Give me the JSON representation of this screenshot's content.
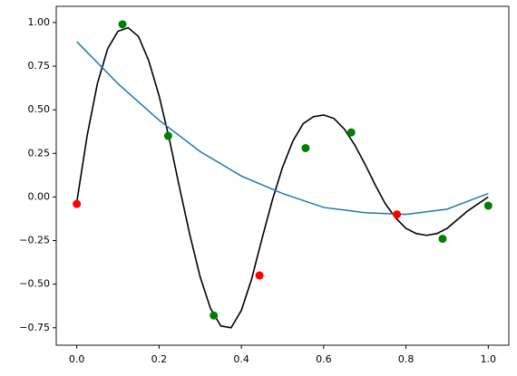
{
  "chart_data": {
    "type": "line",
    "xlim": [
      -0.05,
      1.05
    ],
    "ylim": [
      -0.85,
      1.093
    ],
    "xticks": [
      {
        "value": 0,
        "label": "0.0"
      },
      {
        "value": 0.2,
        "label": "0.2"
      },
      {
        "value": 0.4,
        "label": "0.4"
      },
      {
        "value": 0.6,
        "label": "0.6"
      },
      {
        "value": 0.8,
        "label": "0.8"
      },
      {
        "value": 1,
        "label": "1.0"
      }
    ],
    "yticks": [
      {
        "value": -0.75,
        "label": "−0.75"
      },
      {
        "value": -0.5,
        "label": "−0.50"
      },
      {
        "value": -0.25,
        "label": "−0.25"
      },
      {
        "value": 0,
        "label": "0.00"
      },
      {
        "value": 0.25,
        "label": "0.25"
      },
      {
        "value": 0.5,
        "label": "0.50"
      },
      {
        "value": 0.75,
        "label": "0.75"
      },
      {
        "value": 1,
        "label": "1.00"
      }
    ],
    "series": [
      {
        "style": "line",
        "color": "#000000",
        "x": [
          0,
          0.025,
          0.05,
          0.075,
          0.1,
          0.125,
          0.15,
          0.175,
          0.2,
          0.225,
          0.25,
          0.275,
          0.3,
          0.325,
          0.35,
          0.375,
          0.4,
          0.425,
          0.45,
          0.475,
          0.5,
          0.525,
          0.55,
          0.575,
          0.6,
          0.625,
          0.65,
          0.675,
          0.7,
          0.725,
          0.75,
          0.775,
          0.8,
          0.825,
          0.85,
          0.875,
          0.9,
          0.925,
          0.95,
          0.975,
          1
        ],
        "values": [
          -0.03,
          0.35,
          0.65,
          0.85,
          0.95,
          0.97,
          0.92,
          0.78,
          0.58,
          0.33,
          0.05,
          -0.22,
          -0.46,
          -0.64,
          -0.74,
          -0.75,
          -0.65,
          -0.47,
          -0.24,
          -0.02,
          0.17,
          0.32,
          0.42,
          0.46,
          0.47,
          0.45,
          0.39,
          0.3,
          0.19,
          0.07,
          -0.04,
          -0.12,
          -0.18,
          -0.21,
          -0.22,
          -0.21,
          -0.18,
          -0.13,
          -0.08,
          -0.04,
          0.0
        ]
      },
      {
        "style": "line",
        "color": "#1f77b4",
        "x": [
          0,
          0.1,
          0.2,
          0.3,
          0.4,
          0.5,
          0.6,
          0.7,
          0.8,
          0.9,
          1
        ],
        "values": [
          0.89,
          0.65,
          0.44,
          0.26,
          0.12,
          0.02,
          -0.06,
          -0.09,
          -0.1,
          -0.07,
          0.02
        ]
      },
      {
        "style": "points",
        "color": "#008000",
        "x": [
          0.111,
          0.222,
          0.333,
          0.556,
          0.667,
          0.889,
          1
        ],
        "values": [
          0.99,
          0.35,
          -0.68,
          0.28,
          0.37,
          -0.24,
          -0.05
        ]
      },
      {
        "style": "points",
        "color": "#ff0000",
        "x": [
          0,
          0.444,
          0.778
        ],
        "values": [
          -0.04,
          -0.45,
          -0.1
        ]
      }
    ]
  }
}
